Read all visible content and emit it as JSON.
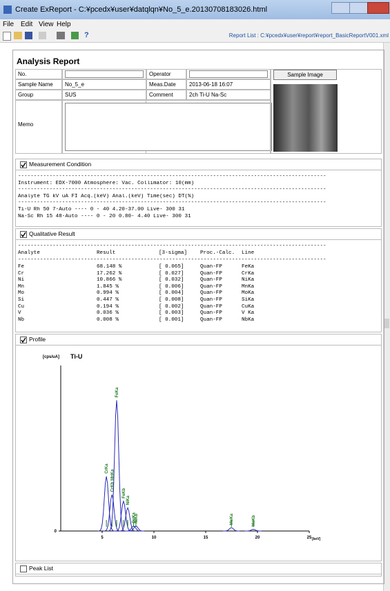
{
  "window": {
    "title": "Create ExReport - C:¥pcedx¥user¥datqlqn¥No_5_e.20130708183026.html",
    "menu": [
      "File",
      "Edit",
      "View",
      "Help"
    ],
    "report_list": "Report List : C:¥pcedx¥user¥report¥report_BasicReportV001.xml"
  },
  "report": {
    "title": "Analysis Report",
    "left_fields": [
      {
        "label": "No."
      },
      {
        "label": "Sample Name",
        "value": "No_5_e"
      },
      {
        "label": "Group",
        "value": "SUS"
      },
      {
        "label": "Memo"
      }
    ],
    "right_fields": [
      {
        "label": "Operator"
      },
      {
        "label": "Meas.Date",
        "value": "2013-06-18 16:07"
      },
      {
        "label": "Comment",
        "value": "2ch Ti-U Na-Sc"
      }
    ],
    "sample_image_button": "Sample Image",
    "measurement": {
      "title": "Measurement Condition",
      "checked": true,
      "lines": [
        "--------------------------------------------------------------------------------------------------",
        "Instrument: EDX-7000   Atmosphere: Vac.   Collimator: 10(mm)",
        "--------------------------------------------------------------------------------------------------",
        "Analyte          TG kV    uA    FI   Acq.(keV) Anal.(keV) Time(sec)   DT(%)",
        "--------------------------------------------------------------------------------------------------",
        "Ti-U             Rh 50    7-Auto ----  0 - 40   4.20-37.00  Live- 300   31",
        "Na-Sc            Rh 15   48-Auto ----  0 - 20   0.80- 4.40  Live- 300   31"
      ]
    },
    "qualitative": {
      "title": "Qualitative Result",
      "checked": true,
      "rule": "--------------------------------------------------------------------------------------------------",
      "header": [
        "Analyte",
        "Result",
        "[3-sigma]",
        "Proc.-Calc.",
        "Line"
      ],
      "rows": [
        [
          "Fe",
          "68.148 %",
          "[ 0.065]",
          "Quan-FP",
          "FeKa"
        ],
        [
          "Cr",
          "17.262 %",
          "[ 0.027]",
          "Quan-FP",
          "CrKa"
        ],
        [
          "Ni",
          "10.866 %",
          "[ 0.032]",
          "Quan-FP",
          "NiKa"
        ],
        [
          "Mn",
          "1.845 %",
          "[ 0.006]",
          "Quan-FP",
          "MnKa"
        ],
        [
          "Mo",
          "0.994 %",
          "[ 0.004]",
          "Quan-FP",
          "MoKa"
        ],
        [
          "Si",
          "0.447 %",
          "[ 0.008]",
          "Quan-FP",
          "SiKa"
        ],
        [
          "Cu",
          "0.194 %",
          "[ 0.002]",
          "Quan-FP",
          "CuKa"
        ],
        [
          "V",
          "0.036 %",
          "[ 0.003]",
          "Quan-FP",
          "V Ka"
        ],
        [
          "Nb",
          "0.008 %",
          "[ 0.001]",
          "Quan-FP",
          "NbKa"
        ]
      ]
    },
    "profile": {
      "title": "Profile",
      "checked": true,
      "chart": {
        "type": "spectrum",
        "y_unit": "[cps/uA]",
        "label": "Ti-U",
        "x_unit": "[keV]",
        "xlim": [
          1,
          25
        ],
        "xticks": [
          5,
          10,
          15,
          20,
          25
        ],
        "ylim": [
          0,
          100
        ],
        "yticks": [
          0
        ],
        "color": "#2a2ab8",
        "label_color": "#1f7a1f",
        "peaks": [
          {
            "x": 5.41,
            "height": 33,
            "label": "CrKa"
          },
          {
            "x": 5.95,
            "height": 22,
            "label": "CrKb MnKa"
          },
          {
            "x": 6.4,
            "height": 79,
            "label": "FeKa"
          },
          {
            "x": 7.06,
            "height": 18,
            "label": "FeKb"
          },
          {
            "x": 7.47,
            "height": 14,
            "label": "NiKa"
          },
          {
            "x": 8.04,
            "height": 3,
            "label": "CuKa"
          },
          {
            "x": 8.26,
            "height": 3,
            "label": "NiKb"
          },
          {
            "x": 17.48,
            "height": 2,
            "label": "MoKa"
          },
          {
            "x": 19.6,
            "height": 1,
            "label": "MoKb"
          }
        ]
      }
    },
    "peak_list": {
      "title": "Peak List",
      "checked": false
    }
  }
}
